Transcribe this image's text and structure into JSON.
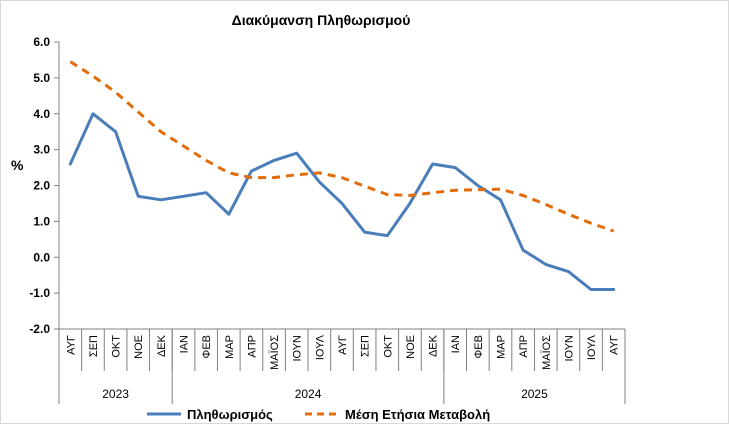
{
  "chart_data": {
    "type": "line",
    "title": "Διακύμανση Πληθωρισμού",
    "ylabel": "%",
    "xlabel": "",
    "ylim": [
      -2.0,
      6.0
    ],
    "ytick_step": 1.0,
    "yticks": [
      "6.0",
      "5.0",
      "4.0",
      "3.0",
      "2.0",
      "1.0",
      "0.0",
      "-1.0",
      "-2.0"
    ],
    "categories": [
      "ΑΥΓ",
      "ΣΕΠ",
      "ΟΚΤ",
      "ΝΟΕ",
      "ΔΕΚ",
      "ΙΑΝ",
      "ΦΕΒ",
      "ΜΑΡ",
      "ΑΠΡ",
      "ΜΑΪΟΣ",
      "ΙΟΥΝ",
      "ΙΟΥΛ",
      "ΑΥΓ",
      "ΣΕΠ",
      "ΟΚΤ",
      "ΝΟΕ",
      "ΔΕΚ",
      "ΙΑΝ",
      "ΦΕΒ",
      "ΜΑΡ",
      "ΑΠΡ",
      "ΜΑΪΟΣ",
      "ΙΟΥΝ",
      "ΙΟΥΛ",
      "ΑΥΓ"
    ],
    "year_groups": [
      {
        "label": "2023",
        "count": 5
      },
      {
        "label": "2024",
        "count": 12
      },
      {
        "label": "2025",
        "count": 8
      }
    ],
    "series": [
      {
        "name": "Πληθωρισμός",
        "color": "#4a7ebb",
        "style": "solid",
        "values": [
          2.6,
          4.0,
          3.5,
          1.7,
          1.6,
          1.7,
          1.8,
          1.2,
          2.4,
          2.7,
          2.9,
          2.1,
          1.5,
          0.7,
          0.6,
          1.5,
          2.6,
          2.5,
          2.0,
          1.6,
          0.2,
          -0.2,
          -0.4,
          -0.9,
          -0.9
        ]
      },
      {
        "name": "Μέση Ετήσια Μεταβολή",
        "color": "#e36c0a",
        "style": "dashed",
        "values": [
          5.45,
          5.05,
          4.6,
          4.05,
          3.5,
          3.1,
          2.7,
          2.35,
          2.22,
          2.22,
          2.3,
          2.35,
          2.22,
          1.98,
          1.75,
          1.72,
          1.8,
          1.87,
          1.88,
          1.9,
          1.72,
          1.47,
          1.2,
          0.95,
          0.73
        ]
      }
    ],
    "grid": false,
    "legend_position": "bottom"
  }
}
